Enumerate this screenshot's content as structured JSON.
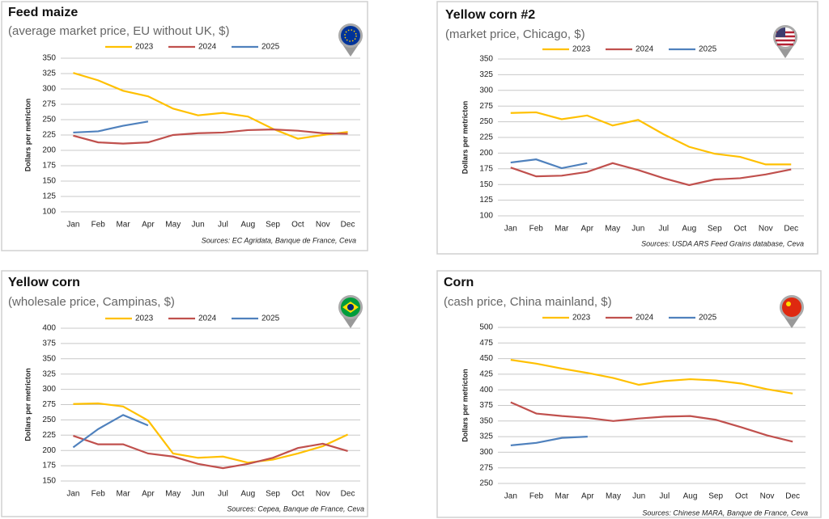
{
  "chart_data": [
    {
      "type": "line",
      "title": "Feed maize",
      "subtitle": "(average market price, EU without UK, $)",
      "y_label": "Dollars per metricton",
      "source": "Sources: EC Agridata, Banque de France, Ceva",
      "categories": [
        "Jan",
        "Feb",
        "Mar",
        "Apr",
        "May",
        "Jun",
        "Jul",
        "Aug",
        "Sep",
        "Oct",
        "Nov",
        "Dec"
      ],
      "series": [
        {
          "name": "2023",
          "color": "#ffc000",
          "values": [
            326,
            314,
            297,
            288,
            268,
            257,
            261,
            255,
            235,
            219,
            225,
            230
          ]
        },
        {
          "name": "2024",
          "color": "#c0504d",
          "values": [
            224,
            213,
            211,
            213,
            225,
            228,
            229,
            233,
            234,
            232,
            228,
            227
          ]
        },
        {
          "name": "2025",
          "color": "#4f81bd",
          "values": [
            229,
            231,
            240,
            247,
            null,
            null,
            null,
            null,
            null,
            null,
            null,
            null
          ]
        }
      ],
      "ylim": [
        100,
        350
      ],
      "yticks": [
        100,
        125,
        150,
        175,
        200,
        225,
        250,
        275,
        300,
        325,
        350
      ],
      "grid": true
    },
    {
      "type": "line",
      "title": "Yellow corn #2",
      "subtitle": "(market price, Chicago, $)",
      "y_label": "Dollars per metricton",
      "source": "Sources: USDA ARS Feed Grains database, Ceva",
      "categories": [
        "Jan",
        "Feb",
        "Mar",
        "Apr",
        "May",
        "Jun",
        "Jul",
        "Aug",
        "Sep",
        "Oct",
        "Nov",
        "Dec"
      ],
      "series": [
        {
          "name": "2023",
          "color": "#ffc000",
          "values": [
            264,
            265,
            254,
            260,
            244,
            253,
            230,
            210,
            199,
            194,
            182,
            182
          ]
        },
        {
          "name": "2024",
          "color": "#c0504d",
          "values": [
            177,
            163,
            164,
            170,
            184,
            173,
            160,
            149,
            158,
            160,
            166,
            174
          ]
        },
        {
          "name": "2025",
          "color": "#4f81bd",
          "values": [
            185,
            190,
            176,
            184,
            null,
            null,
            null,
            null,
            null,
            null,
            null,
            null
          ]
        }
      ],
      "ylim": [
        100,
        350
      ],
      "yticks": [
        100,
        125,
        150,
        175,
        200,
        225,
        250,
        275,
        300,
        325,
        350
      ],
      "grid": true
    },
    {
      "type": "line",
      "title": "Yellow corn",
      "subtitle": "(wholesale price, Campinas, $)",
      "y_label": "Dollars per metricton",
      "source": "Sources: Cepea, Banque de France, Ceva",
      "categories": [
        "Jan",
        "Feb",
        "Mar",
        "Apr",
        "May",
        "Jun",
        "Jul",
        "Aug",
        "Sep",
        "Oct",
        "Nov",
        "Dec"
      ],
      "series": [
        {
          "name": "2023",
          "color": "#ffc000",
          "values": [
            276,
            277,
            272,
            249,
            195,
            188,
            190,
            180,
            185,
            195,
            207,
            226
          ]
        },
        {
          "name": "2024",
          "color": "#c0504d",
          "values": [
            224,
            210,
            210,
            195,
            190,
            178,
            171,
            178,
            188,
            204,
            211,
            199
          ]
        },
        {
          "name": "2025",
          "color": "#4f81bd",
          "values": [
            205,
            235,
            258,
            241,
            null,
            null,
            null,
            null,
            null,
            null,
            null,
            null
          ]
        }
      ],
      "ylim": [
        150,
        400
      ],
      "yticks": [
        150,
        175,
        200,
        225,
        250,
        275,
        300,
        325,
        350,
        375,
        400
      ],
      "grid": true
    },
    {
      "type": "line",
      "title": "Corn",
      "subtitle": "(cash price, China mainland, $)",
      "y_label": "Dollars per metricton",
      "source": "Sources: Chinese MARA, Banque de France, Ceva",
      "categories": [
        "Jan",
        "Feb",
        "Mar",
        "Apr",
        "May",
        "Jun",
        "Jul",
        "Aug",
        "Sep",
        "Oct",
        "Nov",
        "Dec"
      ],
      "series": [
        {
          "name": "2023",
          "color": "#ffc000",
          "values": [
            448,
            442,
            434,
            427,
            419,
            408,
            414,
            417,
            415,
            410,
            401,
            394
          ]
        },
        {
          "name": "2024",
          "color": "#c0504d",
          "values": [
            380,
            362,
            358,
            355,
            350,
            354,
            357,
            358,
            352,
            340,
            327,
            317
          ]
        },
        {
          "name": "2025",
          "color": "#4f81bd",
          "values": [
            311,
            315,
            323,
            325,
            null,
            null,
            null,
            null,
            null,
            null,
            null,
            null
          ]
        }
      ],
      "ylim": [
        250,
        500
      ],
      "yticks": [
        250,
        275,
        300,
        325,
        350,
        375,
        400,
        425,
        450,
        475,
        500
      ],
      "grid": true
    }
  ]
}
